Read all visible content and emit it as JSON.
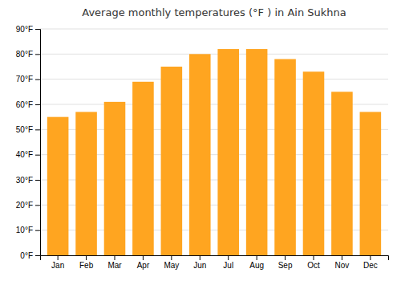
{
  "chart_data": {
    "type": "bar",
    "title": "Average monthly temperatures (°F ) in Ain Sukhna",
    "categories": [
      "Jan",
      "Feb",
      "Mar",
      "Apr",
      "May",
      "Jun",
      "Jul",
      "Aug",
      "Sep",
      "Oct",
      "Nov",
      "Dec"
    ],
    "values": [
      55,
      57,
      61,
      69,
      75,
      80,
      82,
      82,
      78,
      73,
      65,
      57
    ],
    "color": "#FFA520",
    "ylim": [
      0,
      90
    ],
    "yticks": [
      {
        "value": 0,
        "label": "0°F"
      },
      {
        "value": 10,
        "label": "10°F"
      },
      {
        "value": 20,
        "label": "20°F"
      },
      {
        "value": 30,
        "label": "30°F"
      },
      {
        "value": 40,
        "label": "40°F"
      },
      {
        "value": 50,
        "label": "50°F"
      },
      {
        "value": 60,
        "label": "60°F"
      },
      {
        "value": 70,
        "label": "70°F"
      },
      {
        "value": 80,
        "label": "80°F"
      },
      {
        "value": 90,
        "label": "90°F"
      }
    ],
    "grid": true
  }
}
